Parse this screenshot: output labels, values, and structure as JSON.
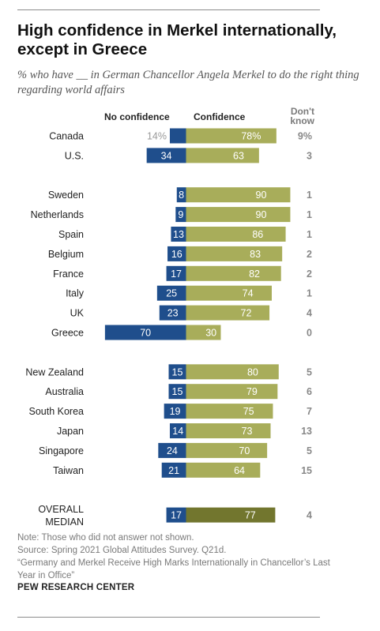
{
  "title": "High confidence in Merkel internationally, except in Greece",
  "subtitle": "% who have __ in German Chancellor Angela Merkel to do the right thing regarding world affairs",
  "column_headers": {
    "no_confidence": "No confidence",
    "confidence": "Confidence",
    "dont_know": "Don't know"
  },
  "note_lines": [
    "Note: Those who did not answer not shown.",
    "Source: Spring 2021 Global Attitudes Survey. Q21d.",
    "“Germany and Merkel Receive High Marks Internationally in Chancellor’s Last Year in Office”"
  ],
  "source_org": "PEW RESEARCH CENTER",
  "colors": {
    "no_confidence": "#1f4e8c",
    "confidence": "#a8ad5a",
    "median_confidence": "#72762e",
    "first_row_no_label": "#999999",
    "dont_know_text": "#888888"
  },
  "chart_data": {
    "type": "bar",
    "layout": "diverging-stacked-horizontal",
    "series": [
      {
        "name": "No confidence",
        "key": "no"
      },
      {
        "name": "Confidence",
        "key": "yes"
      },
      {
        "name": "Don't know",
        "key": "dk"
      }
    ],
    "rows": [
      {
        "label": "Canada",
        "no": 14,
        "yes": 78,
        "dk": 9,
        "no_label": "14%",
        "yes_label": "78%",
        "dk_label": "9%",
        "group": 0
      },
      {
        "label": "U.S.",
        "no": 34,
        "yes": 63,
        "dk": 3,
        "no_label": "34",
        "yes_label": "63",
        "dk_label": "3",
        "group": 0
      },
      {
        "label": "Sweden",
        "no": 8,
        "yes": 90,
        "dk": 1,
        "no_label": "8",
        "yes_label": "90",
        "dk_label": "1",
        "group": 1
      },
      {
        "label": "Netherlands",
        "no": 9,
        "yes": 90,
        "dk": 1,
        "no_label": "9",
        "yes_label": "90",
        "dk_label": "1",
        "group": 1
      },
      {
        "label": "Spain",
        "no": 13,
        "yes": 86,
        "dk": 1,
        "no_label": "13",
        "yes_label": "86",
        "dk_label": "1",
        "group": 1
      },
      {
        "label": "Belgium",
        "no": 16,
        "yes": 83,
        "dk": 2,
        "no_label": "16",
        "yes_label": "83",
        "dk_label": "2",
        "group": 1
      },
      {
        "label": "France",
        "no": 17,
        "yes": 82,
        "dk": 2,
        "no_label": "17",
        "yes_label": "82",
        "dk_label": "2",
        "group": 1
      },
      {
        "label": "Italy",
        "no": 25,
        "yes": 74,
        "dk": 1,
        "no_label": "25",
        "yes_label": "74",
        "dk_label": "1",
        "group": 1
      },
      {
        "label": "UK",
        "no": 23,
        "yes": 72,
        "dk": 4,
        "no_label": "23",
        "yes_label": "72",
        "dk_label": "4",
        "group": 1
      },
      {
        "label": "Greece",
        "no": 70,
        "yes": 30,
        "dk": 0,
        "no_label": "70",
        "yes_label": "30",
        "dk_label": "0",
        "group": 1
      },
      {
        "label": "New Zealand",
        "no": 15,
        "yes": 80,
        "dk": 5,
        "no_label": "15",
        "yes_label": "80",
        "dk_label": "5",
        "group": 2
      },
      {
        "label": "Australia",
        "no": 15,
        "yes": 79,
        "dk": 6,
        "no_label": "15",
        "yes_label": "79",
        "dk_label": "6",
        "group": 2
      },
      {
        "label": "South Korea",
        "no": 19,
        "yes": 75,
        "dk": 7,
        "no_label": "19",
        "yes_label": "75",
        "dk_label": "7",
        "group": 2
      },
      {
        "label": "Japan",
        "no": 14,
        "yes": 73,
        "dk": 13,
        "no_label": "14",
        "yes_label": "73",
        "dk_label": "13",
        "group": 2
      },
      {
        "label": "Singapore",
        "no": 24,
        "yes": 70,
        "dk": 5,
        "no_label": "24",
        "yes_label": "70",
        "dk_label": "5",
        "group": 2
      },
      {
        "label": "Taiwan",
        "no": 21,
        "yes": 64,
        "dk": 15,
        "no_label": "21",
        "yes_label": "64",
        "dk_label": "15",
        "group": 2
      },
      {
        "label": "OVERALL MEDIAN",
        "label_lines": [
          "OVERALL",
          "MEDIAN"
        ],
        "no": 17,
        "yes": 77,
        "dk": 4,
        "no_label": "17",
        "yes_label": "77",
        "dk_label": "4",
        "group": 3,
        "is_median": true
      }
    ]
  }
}
